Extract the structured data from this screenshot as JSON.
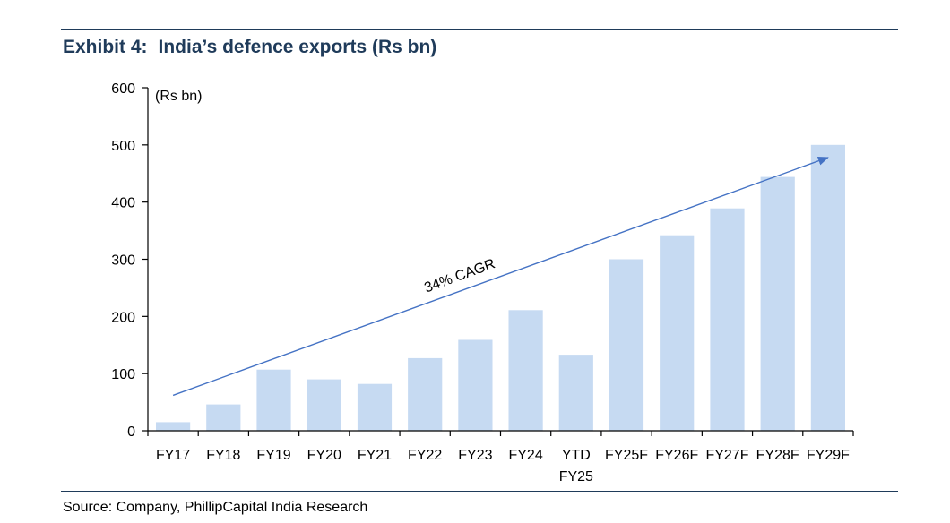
{
  "header": {
    "exhibit_label": "Exhibit 4:",
    "title_text": "India’s defence exports (Rs bn)"
  },
  "footer": {
    "source": "Source: Company, PhillipCapital India Research"
  },
  "chart_data": {
    "type": "bar",
    "title": "India’s defence exports (Rs bn)",
    "ylabel": "(Rs bn)",
    "xlabel": "",
    "ylim": [
      0,
      600
    ],
    "yticks": [
      0,
      100,
      200,
      300,
      400,
      500,
      600
    ],
    "categories": [
      [
        "FY17"
      ],
      [
        "FY18"
      ],
      [
        "FY19"
      ],
      [
        "FY20"
      ],
      [
        "FY21"
      ],
      [
        "FY22"
      ],
      [
        "FY23"
      ],
      [
        "FY24"
      ],
      [
        "YTD",
        "FY25"
      ],
      [
        "FY25F"
      ],
      [
        "FY26F"
      ],
      [
        "FY27F"
      ],
      [
        "FY28F"
      ],
      [
        "FY29F"
      ]
    ],
    "values": [
      15,
      46,
      107,
      90,
      82,
      127,
      159,
      211,
      133,
      300,
      342,
      389,
      444,
      500
    ],
    "bar_color": "#c6daf2",
    "annotation": {
      "text": "34% CAGR",
      "arrow_color": "#4472c4",
      "from": {
        "category_index": 0,
        "value": 62
      },
      "to": {
        "category_index": 13,
        "value": 478
      }
    },
    "grid": false
  }
}
